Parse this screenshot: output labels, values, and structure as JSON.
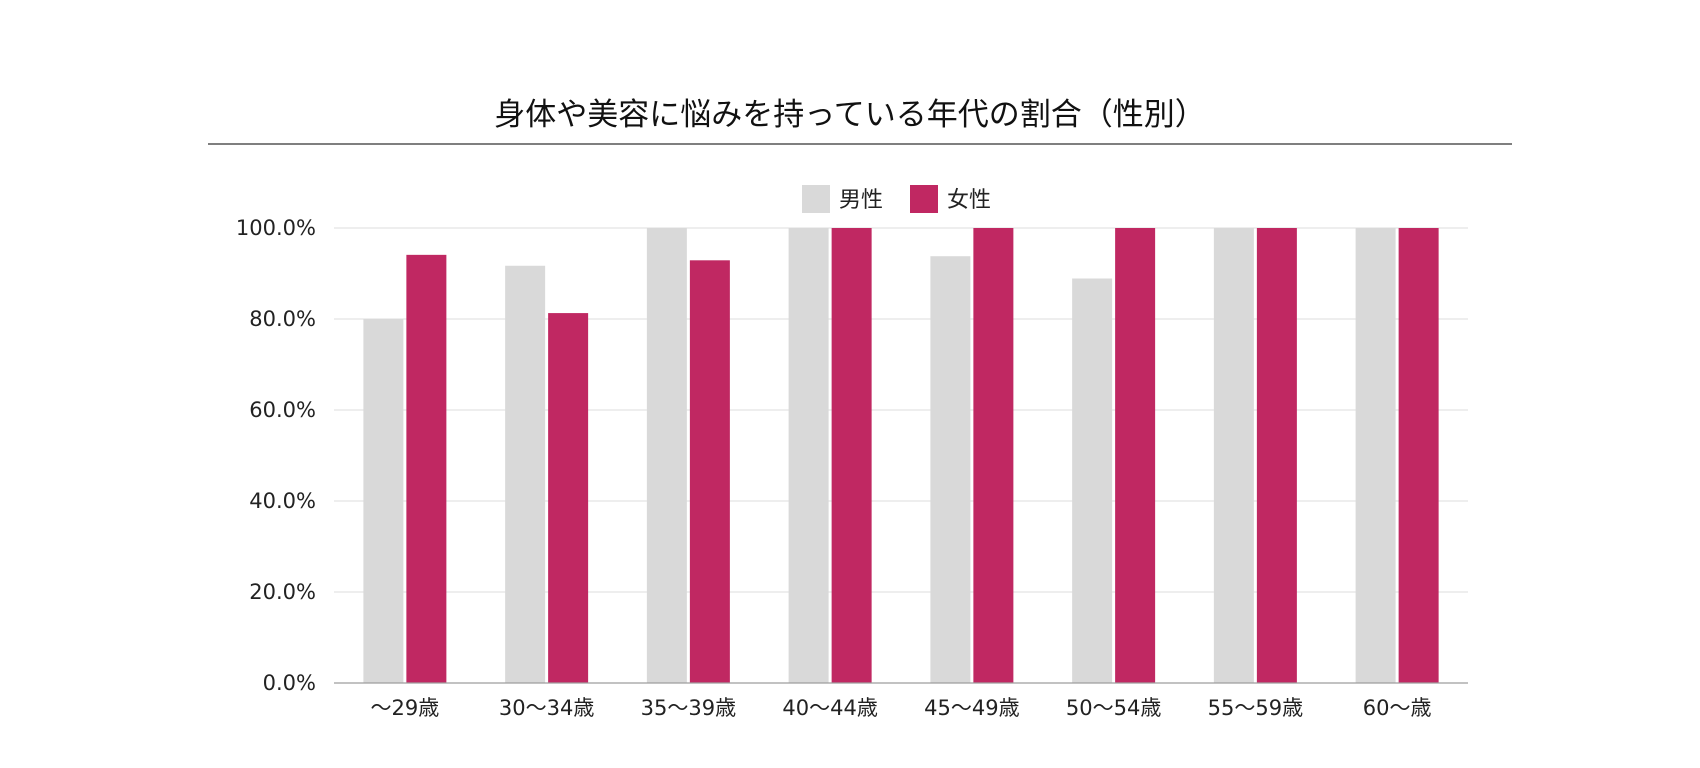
{
  "chart_data": {
    "type": "bar",
    "title": "身体や美容に悩みを持っている年代の割合（性別）",
    "categories": [
      "～29歳",
      "30～34歳",
      "35～39歳",
      "40～44歳",
      "45～49歳",
      "50～54歳",
      "55～59歳",
      "60～歳"
    ],
    "series": [
      {
        "name": "男性",
        "color": "#d9d9d9",
        "values": [
          80.0,
          91.7,
          100.0,
          100.0,
          93.8,
          88.9,
          100.0,
          100.0
        ]
      },
      {
        "name": "女性",
        "color": "#c02862",
        "values": [
          94.1,
          81.3,
          92.9,
          100.0,
          100.0,
          100.0,
          100.0,
          100.0
        ]
      }
    ],
    "y_ticks": [
      "0.0%",
      "20.0%",
      "40.0%",
      "60.0%",
      "80.0%",
      "100.0%"
    ],
    "ylim": [
      0,
      100
    ],
    "grid": true,
    "legend_position": "top-center"
  }
}
